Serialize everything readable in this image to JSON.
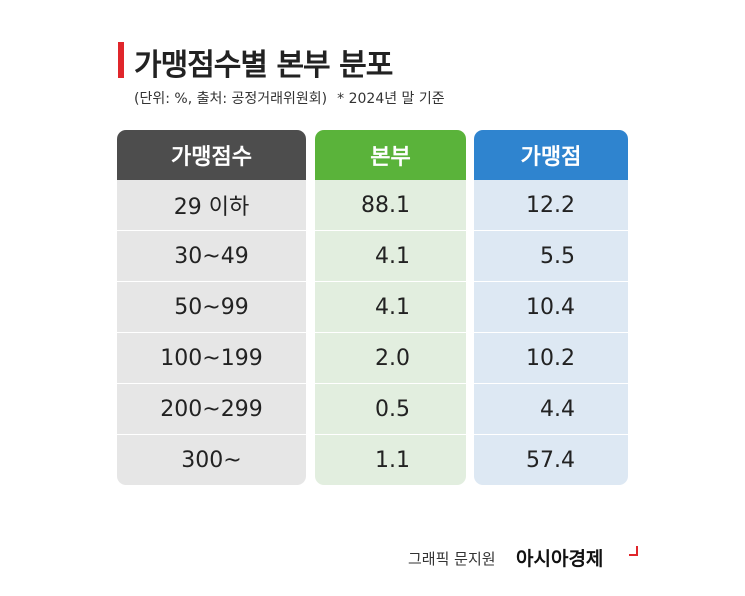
{
  "header": {
    "title": "가맹점수별 본부 분포",
    "unit_source": "(단위: %, 출처: 공정거래위원회)",
    "note": "* 2024년 말 기준"
  },
  "table": {
    "columns": [
      "가맹점수",
      "본부",
      "가맹점"
    ],
    "rows": [
      [
        "29 이하",
        "88.1",
        "12.2"
      ],
      [
        "30~49",
        "4.1",
        "5.5"
      ],
      [
        "50~99",
        "4.1",
        "10.4"
      ],
      [
        "100~199",
        "2.0",
        "10.2"
      ],
      [
        "200~299",
        "0.5",
        "4.4"
      ],
      [
        "300~",
        "1.1",
        "57.4"
      ]
    ]
  },
  "footer": {
    "credit": "그래픽 문지원",
    "brand": "아시아경제"
  }
}
